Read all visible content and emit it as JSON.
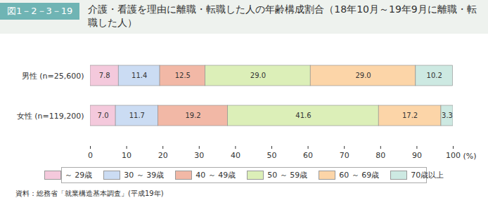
{
  "chart_data": {
    "type": "bar",
    "orientation": "horizontal",
    "stacked": true,
    "data_labels": true,
    "grid": false,
    "legend": "bottom",
    "annotations": [
      "図1－2－3－19"
    ],
    "title": "介護・看護を理由に離職・転職した人の年齢構成割合（18年10月～19年9月に離職・転職した人）",
    "source": "資料：総務省「就業構造基本調査」(平成19年)",
    "xlabel": "(%)",
    "categories": [
      "男性 (n=25,600)",
      "女性 (n=119,200)"
    ],
    "xlim": [
      0,
      100
    ],
    "xticks": [
      0,
      10,
      20,
      30,
      40,
      50,
      60,
      70,
      80,
      90,
      100
    ],
    "series": [
      {
        "name": "～ 29歳",
        "color": "#f4c9dc",
        "values": [
          7.8,
          7.0
        ],
        "value_labels": [
          "7.8",
          "7.0"
        ]
      },
      {
        "name": "30 ～ 39歳",
        "color": "#cbdcf3",
        "values": [
          11.4,
          11.7
        ],
        "value_labels": [
          "11.4",
          "11.7"
        ]
      },
      {
        "name": "40 ～ 49歳",
        "color": "#f2b8a6",
        "values": [
          12.5,
          19.2
        ],
        "value_labels": [
          "12.5",
          "19.2"
        ]
      },
      {
        "name": "50 ～ 59歳",
        "color": "#dcefb8",
        "values": [
          29.0,
          41.6
        ],
        "value_labels": [
          "29.0",
          "41.6"
        ]
      },
      {
        "name": "60 ～ 69歳",
        "color": "#fcd5a8",
        "values": [
          29.0,
          17.2
        ],
        "value_labels": [
          "29.0",
          "17.2"
        ]
      },
      {
        "name": "70歳以上",
        "color": "#cde9e2",
        "values": [
          10.2,
          3.3
        ],
        "value_labels": [
          "10.2",
          "3.3"
        ]
      }
    ]
  }
}
